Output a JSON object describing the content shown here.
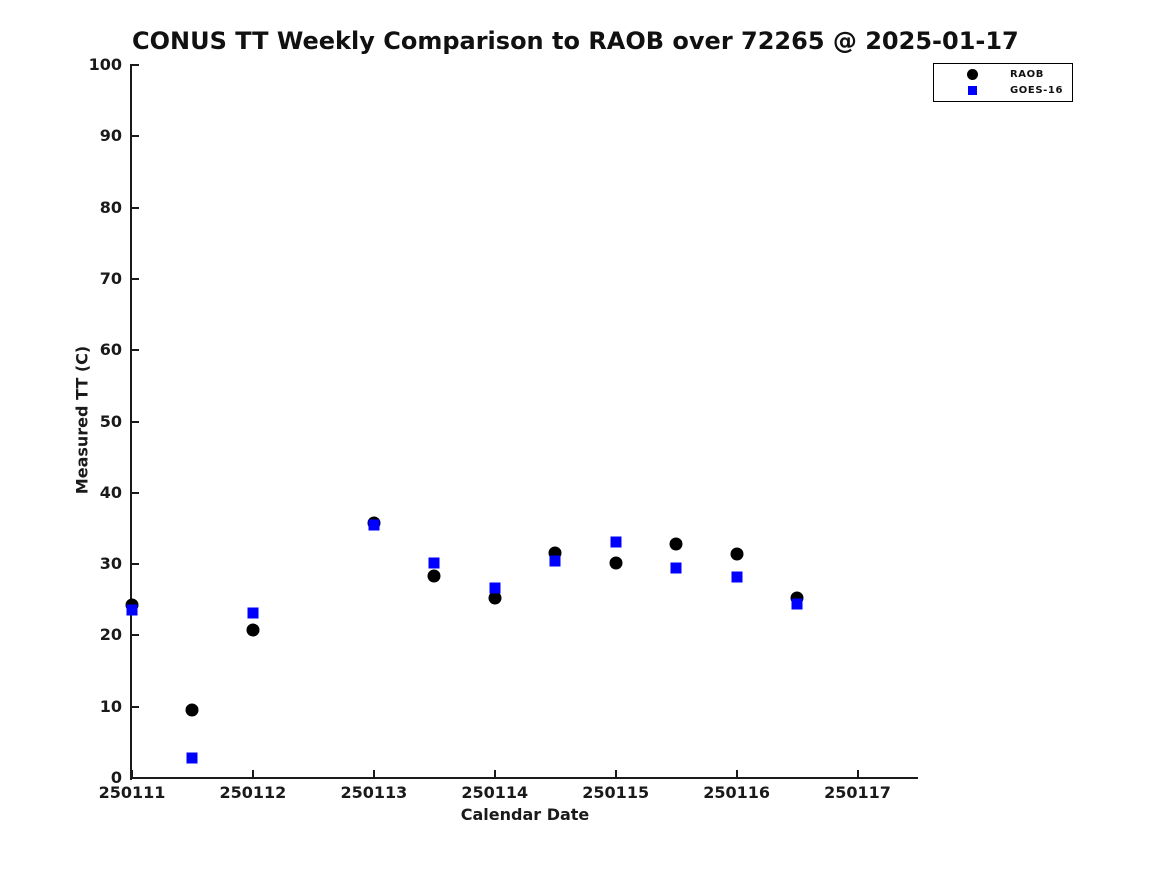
{
  "chart_data": {
    "type": "scatter",
    "title": "CONUS TT Weekly Comparison to RAOB over 72265 @ 2025-01-17",
    "xlabel": "Calendar Date",
    "ylabel": "Measured TT (C)",
    "xlim": [
      250111,
      250117.5
    ],
    "ylim": [
      0,
      100
    ],
    "x_ticks": [
      250111,
      250112,
      250113,
      250114,
      250115,
      250116,
      250117
    ],
    "y_ticks": [
      0,
      10,
      20,
      30,
      40,
      50,
      60,
      70,
      80,
      90,
      100
    ],
    "grid": false,
    "legend_position": "top-right",
    "axis_color": "#1a1a1a",
    "background_color": "#ffffff",
    "series": [
      {
        "name": "RAOB",
        "marker": "circle",
        "color": "#000000",
        "x": [
          250111,
          250111.5,
          250112,
          250113,
          250113.5,
          250114,
          250114.5,
          250115,
          250115.5,
          250116,
          250116.5
        ],
        "y": [
          24.3,
          9.6,
          20.7,
          35.8,
          28.3,
          25.3,
          31.5,
          30.1,
          32.8,
          31.4,
          25.2
        ]
      },
      {
        "name": "GOES-16",
        "marker": "square",
        "color": "#0000ff",
        "x": [
          250111,
          250111.5,
          250112,
          250113,
          250113.5,
          250114,
          250114.5,
          250115,
          250115.5,
          250116,
          250116.5
        ],
        "y": [
          23.6,
          2.8,
          23.2,
          35.5,
          30.2,
          26.7,
          30.5,
          33.1,
          29.4,
          28.2,
          24.4
        ]
      }
    ]
  }
}
